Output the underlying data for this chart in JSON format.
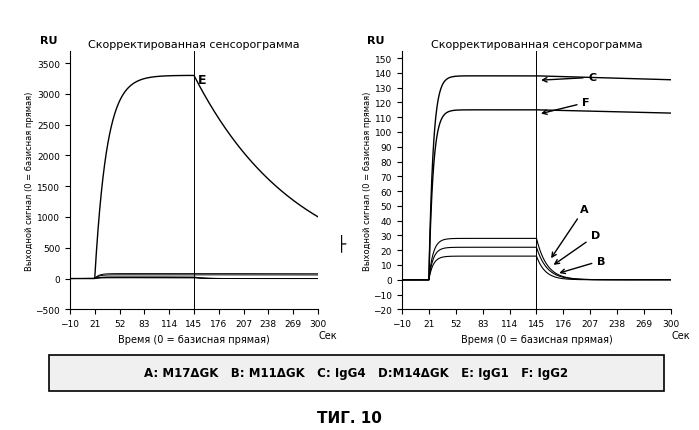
{
  "title1": "Скорректированная сенсорограмма",
  "title2": "Скорректированная сенсорограмма",
  "ylabel": "Выходной сигнал (0 = базисная прямая)",
  "xlabel": "Время (0 = базисная прямая)",
  "sec_label": "Сек",
  "ru_label": "RU",
  "xticks": [
    -10,
    21,
    52,
    83,
    114,
    145,
    176,
    207,
    238,
    269,
    300
  ],
  "yticks1": [
    -500,
    0,
    500,
    1000,
    1500,
    2000,
    2500,
    3000,
    3500
  ],
  "yticks2": [
    -20,
    -10,
    0,
    10,
    20,
    30,
    40,
    50,
    60,
    70,
    80,
    90,
    100,
    110,
    120,
    130,
    140,
    150
  ],
  "ylim1": [
    -500,
    3700
  ],
  "ylim2": [
    -20,
    155
  ],
  "fig_label": "ΤИГ. 10",
  "legend_text": "A: M17ΔGK   B: M11ΔGK   C: IgG4   D:M14ΔGK   E: IgG1   F: IgG2",
  "background": "#ffffff"
}
